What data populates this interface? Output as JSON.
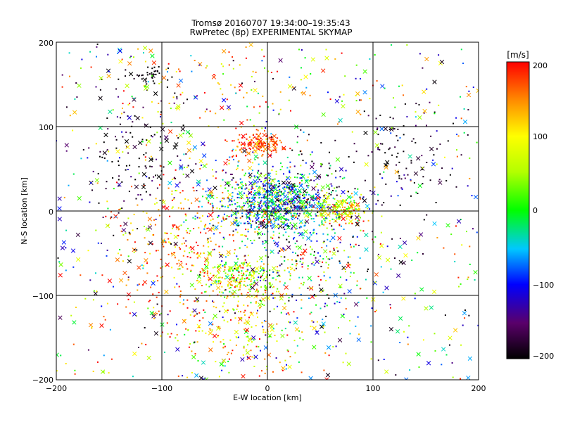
{
  "chart_data": {
    "type": "scatter",
    "title": "Tromsø 20160707 19:34:00–19:35:43",
    "subtitle": "RwPretec (8p) EXPERIMENTAL SKYMAP",
    "xlabel": "E-W location [km]",
    "ylabel": "N-S location [km]",
    "xlim": [
      -200,
      200
    ],
    "ylim": [
      -200,
      200
    ],
    "xticks": [
      "−200",
      "−100",
      "0",
      "100",
      "200"
    ],
    "yticks": [
      "200",
      "100",
      "0",
      "−100",
      "−200"
    ],
    "grid": true,
    "colorbar": {
      "label": "[m/s]",
      "range": [
        -200,
        200
      ],
      "ticks": [
        "200",
        "100",
        "0",
        "−100",
        "−200"
      ],
      "colormap": "rainbow"
    },
    "clusters": [
      {
        "x": 5,
        "y": 10,
        "sx": 28,
        "sy": 20,
        "n": 900,
        "v": -60,
        "sv": 80
      },
      {
        "x": 70,
        "y": 2,
        "sx": 14,
        "sy": 10,
        "n": 200,
        "v": 90,
        "sv": 70
      },
      {
        "x": -8,
        "y": 78,
        "sx": 12,
        "sy": 7,
        "n": 160,
        "v": 180,
        "sv": 40
      },
      {
        "x": -25,
        "y": -78,
        "sx": 18,
        "sy": 12,
        "n": 220,
        "v": 60,
        "sv": 60
      },
      {
        "x": -70,
        "y": -40,
        "sx": 40,
        "sy": 50,
        "n": 420,
        "v": 150,
        "sv": 60
      },
      {
        "x": 40,
        "y": -60,
        "sx": 35,
        "sy": 45,
        "n": 300,
        "v": -20,
        "sv": 120
      },
      {
        "x": 110,
        "y": 55,
        "sx": 40,
        "sy": 30,
        "n": 130,
        "v": -190,
        "sv": 20
      },
      {
        "x": -120,
        "y": 60,
        "sx": 25,
        "sy": 50,
        "n": 150,
        "v": -190,
        "sv": 30
      },
      {
        "x": -20,
        "y": -150,
        "sx": 30,
        "sy": 30,
        "n": 160,
        "v": 110,
        "sv": 70
      },
      {
        "x": -40,
        "y": 150,
        "sx": 60,
        "sy": 30,
        "n": 100,
        "v": 120,
        "sv": 100
      },
      {
        "x": -115,
        "y": 160,
        "sx": 12,
        "sy": 8,
        "n": 40,
        "v": -200,
        "sv": 10
      }
    ],
    "background_points": 700
  }
}
